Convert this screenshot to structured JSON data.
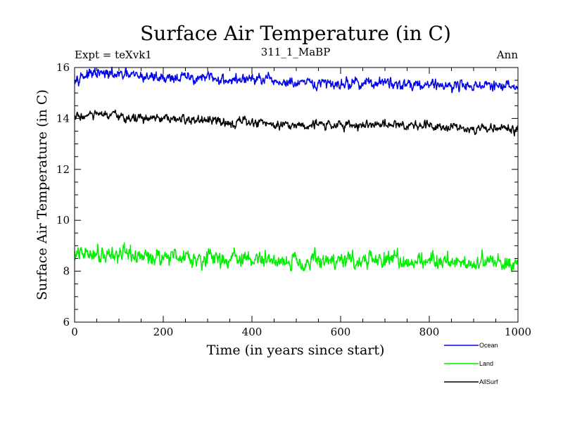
{
  "chart_data": {
    "type": "line",
    "title": "Surface Air Temperature (in C)",
    "subtitle": "311_1_MaBP",
    "left_label": "Expt = teXvk1",
    "right_label": "Ann",
    "xlabel": "Time (in years since start)",
    "ylabel": "Surface Air Temperature (in C)",
    "xlim": [
      0,
      1000
    ],
    "ylim": [
      6,
      16
    ],
    "x_ticks": [
      0,
      200,
      400,
      600,
      800,
      1000
    ],
    "y_ticks": [
      6,
      8,
      10,
      12,
      14,
      16
    ],
    "x_tick_labels": [
      "0",
      "200",
      "400",
      "600",
      "800",
      "1000"
    ],
    "y_tick_labels": [
      "6",
      "8",
      "10",
      "12",
      "14",
      "16"
    ],
    "x_minor_step": 50,
    "y_minor_step": 0.5,
    "grid": false,
    "legend_position": "bottom-right",
    "x": [
      0,
      50,
      100,
      150,
      200,
      250,
      300,
      350,
      400,
      450,
      500,
      550,
      600,
      650,
      700,
      750,
      800,
      850,
      900,
      950,
      1000
    ],
    "series": [
      {
        "name": "Ocean",
        "color": "#0000ee",
        "values": [
          15.65,
          15.75,
          15.7,
          15.65,
          15.62,
          15.6,
          15.58,
          15.5,
          15.55,
          15.45,
          15.35,
          15.35,
          15.38,
          15.4,
          15.38,
          15.35,
          15.35,
          15.3,
          15.3,
          15.25,
          15.25
        ],
        "noise_amplitude": 0.13
      },
      {
        "name": "Land",
        "color": "#00ee00",
        "values": [
          8.6,
          8.75,
          8.65,
          8.55,
          8.6,
          8.6,
          8.5,
          8.5,
          8.45,
          8.45,
          8.4,
          8.4,
          8.45,
          8.4,
          8.45,
          8.4,
          8.45,
          8.4,
          8.35,
          8.35,
          8.35
        ],
        "noise_amplitude": 0.2
      },
      {
        "name": "AllSurf",
        "color": "#000000",
        "values": [
          14.05,
          14.15,
          14.05,
          14.0,
          13.95,
          13.95,
          13.9,
          13.85,
          13.85,
          13.8,
          13.75,
          13.75,
          13.75,
          13.75,
          13.75,
          13.75,
          13.75,
          13.7,
          13.6,
          13.6,
          13.6
        ],
        "noise_amplitude": 0.11
      }
    ]
  }
}
